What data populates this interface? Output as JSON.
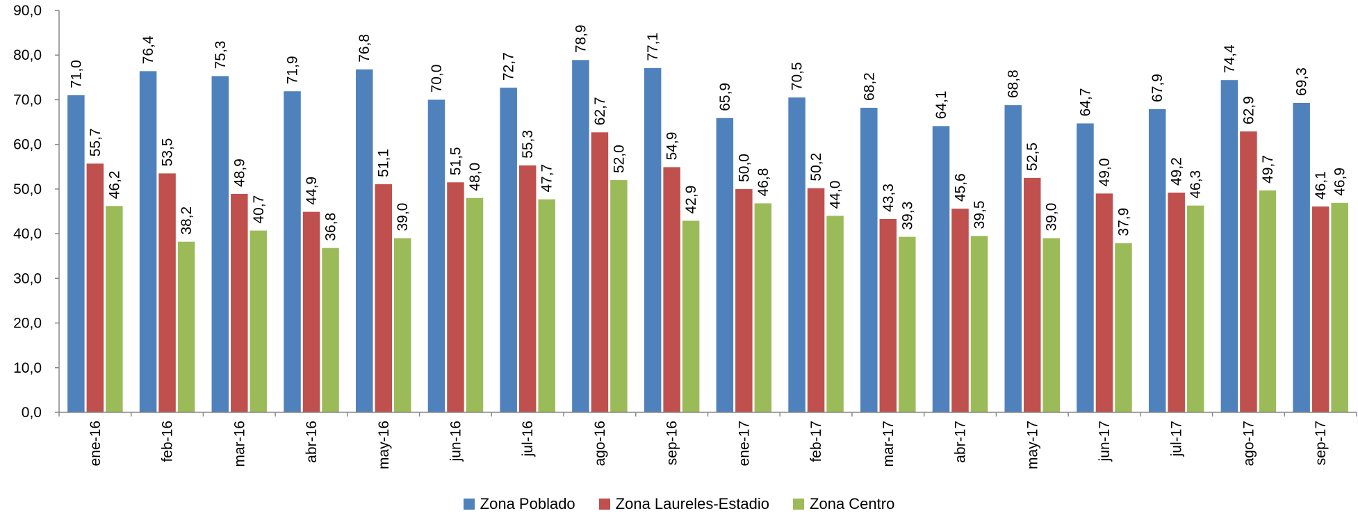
{
  "chart_data": {
    "type": "bar",
    "categories": [
      "ene-16",
      "feb-16",
      "mar-16",
      "abr-16",
      "may-16",
      "jun-16",
      "jul-16",
      "ago-16",
      "sep-16",
      "ene-17",
      "feb-17",
      "mar-17",
      "abr-17",
      "may-17",
      "jun-17",
      "jul-17",
      "ago-17",
      "sep-17"
    ],
    "series": [
      {
        "name": "Zona Poblado",
        "color": "#4F81BD",
        "values": [
          71.0,
          76.4,
          75.3,
          71.9,
          76.8,
          70.0,
          72.7,
          78.9,
          77.1,
          65.9,
          70.5,
          68.2,
          64.1,
          68.8,
          64.7,
          67.9,
          74.4,
          69.3
        ]
      },
      {
        "name": "Zona Laureles-Estadio",
        "color": "#C0504D",
        "values": [
          55.7,
          53.5,
          48.9,
          44.9,
          51.1,
          51.5,
          55.3,
          62.7,
          54.9,
          50.0,
          50.2,
          43.3,
          45.6,
          52.5,
          49.0,
          49.2,
          62.9,
          46.1
        ]
      },
      {
        "name": "Zona Centro",
        "color": "#9BBB59",
        "values": [
          46.2,
          38.2,
          40.7,
          36.8,
          39.0,
          48.0,
          47.7,
          52.0,
          42.9,
          46.8,
          44.0,
          39.3,
          39.5,
          39.0,
          37.9,
          46.3,
          49.7,
          46.9
        ]
      }
    ],
    "ylim": [
      0,
      90
    ],
    "yticks": [
      "0,0",
      "10,0",
      "20,0",
      "30,0",
      "40,0",
      "50,0",
      "60,0",
      "70,0",
      "80,0",
      "90,0"
    ],
    "data_labels": [
      [
        "71,0",
        "76,4",
        "75,3",
        "71,9",
        "76,8",
        "70,0",
        "72,7",
        "78,9",
        "77,1",
        "65,9",
        "70,5",
        "68,2",
        "64,1",
        "68,8",
        "64,7",
        "67,9",
        "74,4",
        "69,3"
      ],
      [
        "55,7",
        "53,5",
        "48,9",
        "44,9",
        "51,1",
        "51,5",
        "55,3",
        "62,7",
        "54,9",
        "50,0",
        "50,2",
        "43,3",
        "45,6",
        "52,5",
        "49,0",
        "49,2",
        "62,9",
        "46,1"
      ],
      [
        "46,2",
        "38,2",
        "40,7",
        "36,8",
        "39,0",
        "48,0",
        "47,7",
        "52,0",
        "42,9",
        "46,8",
        "44,0",
        "39,3",
        "39,5",
        "39,0",
        "37,9",
        "46,3",
        "49,7",
        "46,9"
      ]
    ],
    "title": "",
    "xlabel": "",
    "ylabel": "",
    "grid": false,
    "legend_position": "bottom"
  }
}
